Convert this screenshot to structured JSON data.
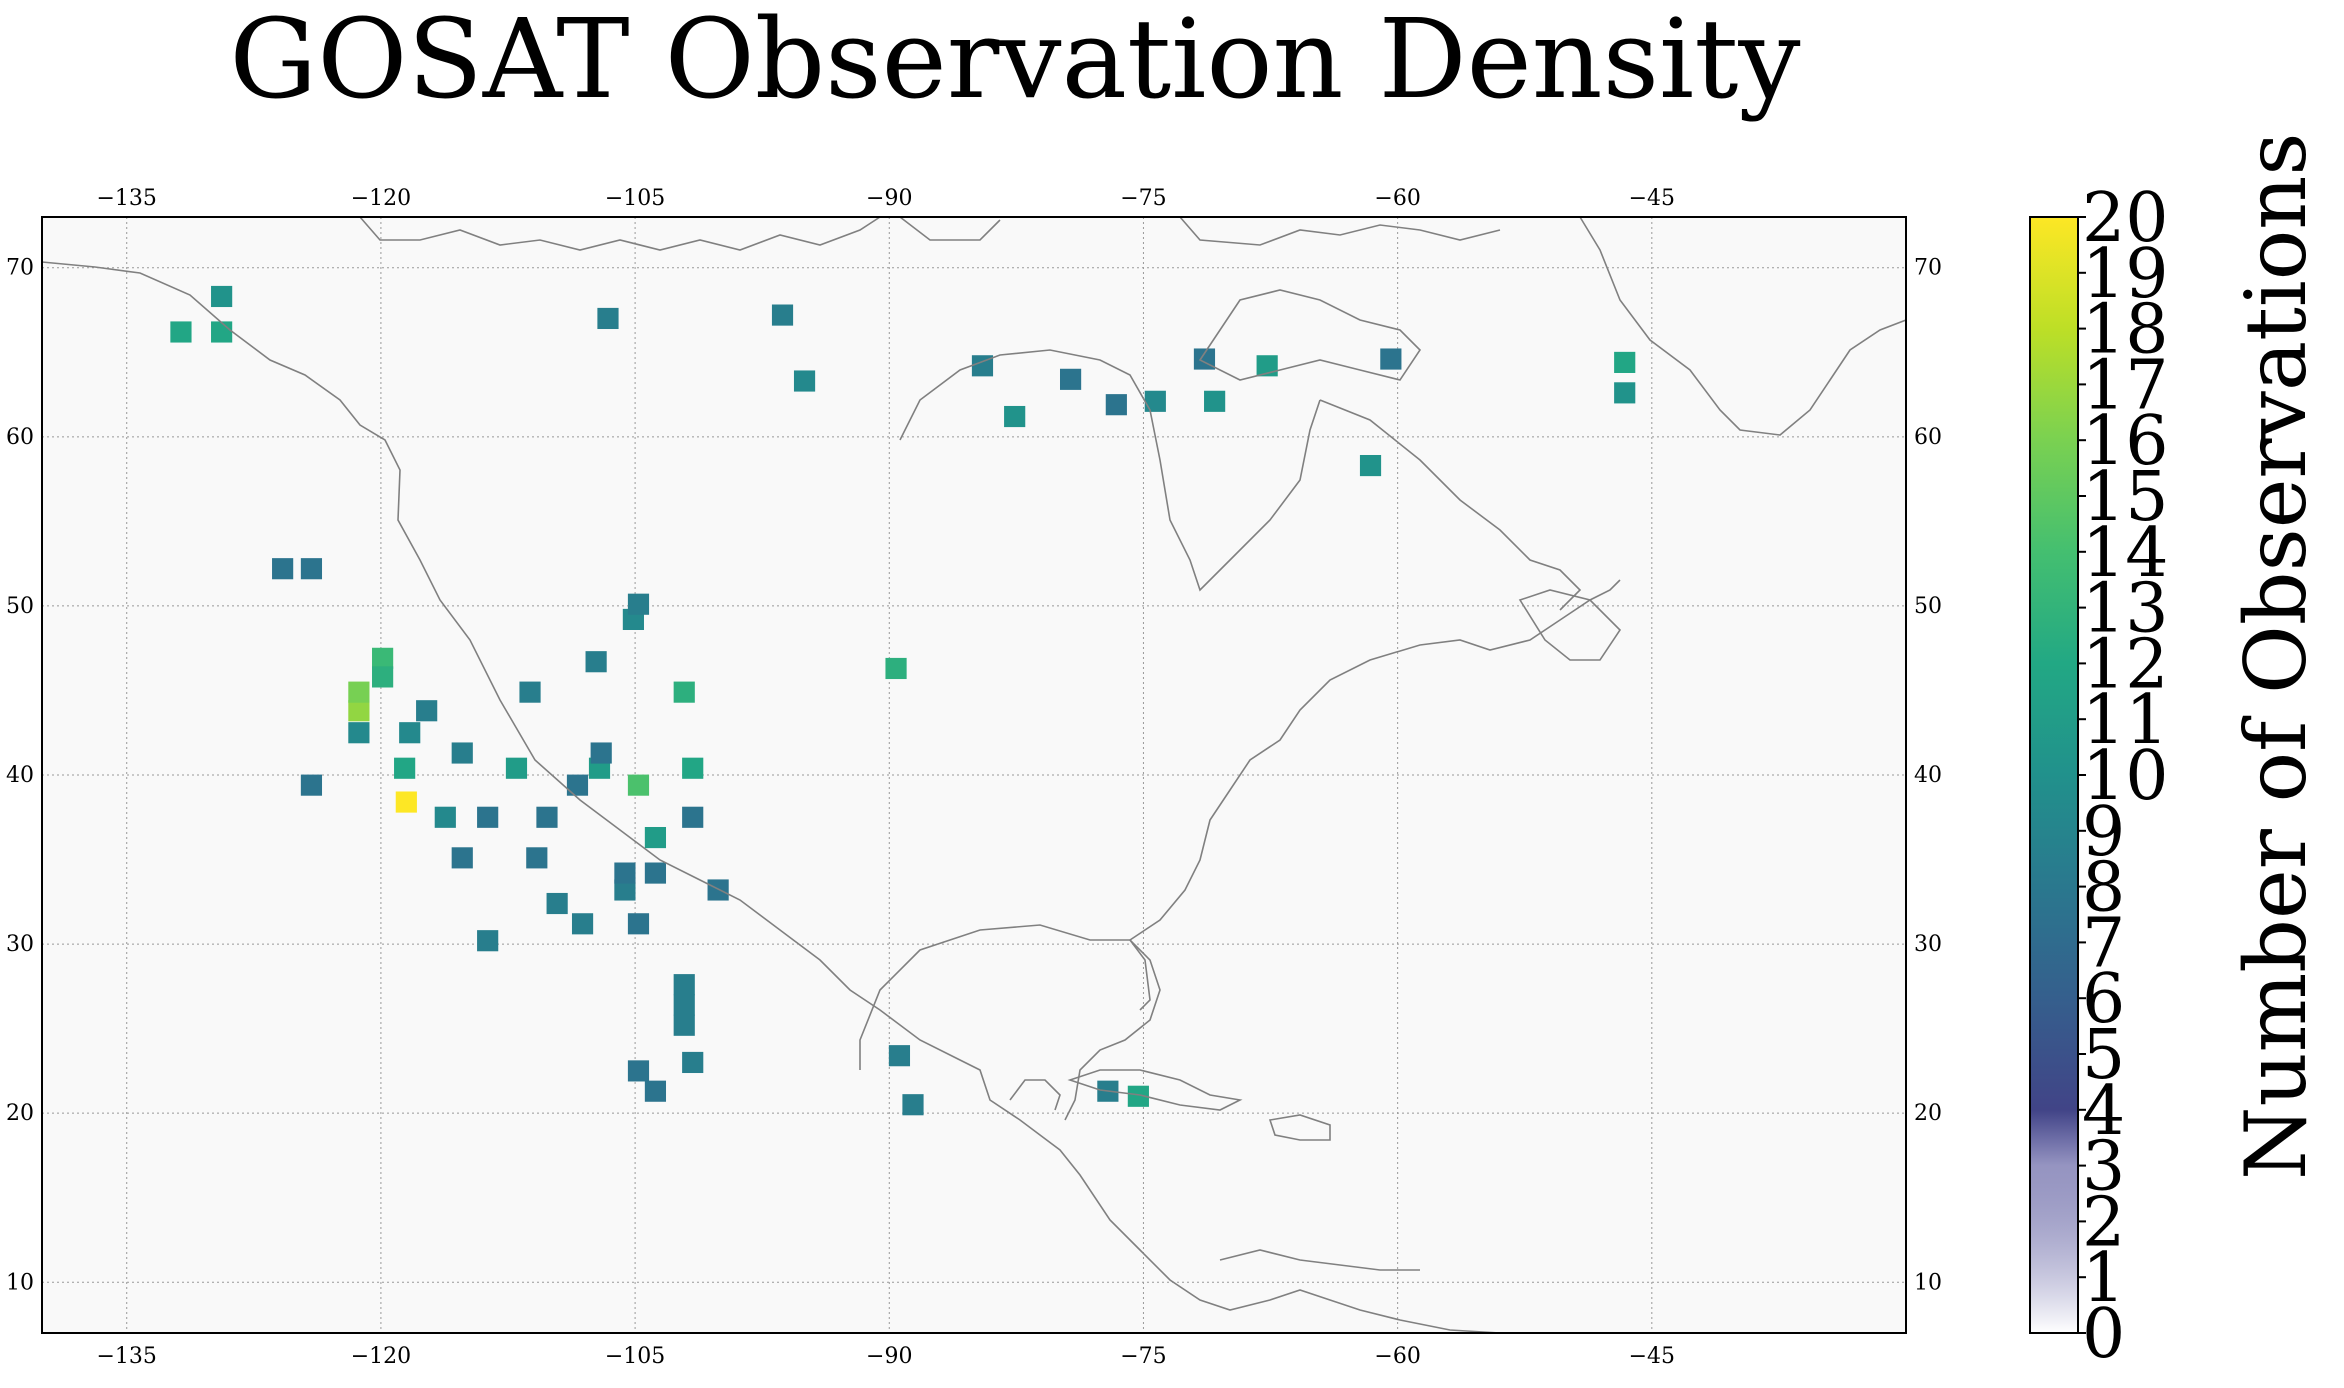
{
  "title": "GOSAT Observation Density",
  "colorbar": {
    "label": "Number of Observations",
    "vmin": 0,
    "vmax": 20,
    "ticks": [
      0,
      1,
      2,
      3,
      4,
      5,
      6,
      7,
      8,
      9,
      10,
      11,
      12,
      13,
      14,
      15,
      16,
      17,
      18,
      19,
      20
    ],
    "colormap": "viridis",
    "low_end_transparent": true
  },
  "chart_data": {
    "type": "heatmap",
    "projection": "PlateCarree",
    "title": "GOSAT Observation Density",
    "xlim": [
      -140,
      -30
    ],
    "ylim": [
      7,
      73
    ],
    "cell_size_deg": 1.25,
    "x_ticks": [
      -135,
      -120,
      -105,
      -90,
      -75,
      -60,
      -45
    ],
    "y_ticks": [
      10,
      20,
      30,
      40,
      50,
      60,
      70
    ],
    "grid": true,
    "background": "#f9f9f9",
    "coastline_color": "#808080",
    "cells": [
      [
        -121.3,
        43.8,
        16
      ],
      [
        -121.3,
        44.9,
        15
      ],
      [
        -118.5,
        38.4,
        20
      ],
      [
        -104.8,
        39.4,
        13
      ],
      [
        -119.9,
        46.9,
        12
      ],
      [
        -119.9,
        45.8,
        11
      ],
      [
        -102.1,
        44.9,
        11
      ],
      [
        -89.6,
        46.3,
        11
      ],
      [
        -131.8,
        66.2,
        10
      ],
      [
        -129.4,
        66.2,
        10
      ],
      [
        -101.6,
        40.4,
        10
      ],
      [
        -46.6,
        64.4,
        10
      ],
      [
        -75.3,
        21.0,
        10
      ],
      [
        -118.6,
        40.4,
        10
      ],
      [
        -107.1,
        40.4,
        9
      ],
      [
        -112.0,
        40.4,
        9
      ],
      [
        -103.8,
        36.3,
        9
      ],
      [
        -67.7,
        64.2,
        9
      ],
      [
        -46.6,
        62.6,
        8
      ],
      [
        -129.4,
        68.3,
        8
      ],
      [
        -82.6,
        61.2,
        8
      ],
      [
        -70.8,
        62.1,
        8
      ],
      [
        -61.6,
        58.3,
        8
      ],
      [
        -74.3,
        62.1,
        7
      ],
      [
        -105.1,
        49.2,
        7
      ],
      [
        -95.0,
        63.3,
        7
      ],
      [
        -121.3,
        42.5,
        7
      ],
      [
        -118.3,
        42.5,
        7
      ],
      [
        -116.2,
        37.5,
        7
      ],
      [
        -113.7,
        30.2,
        6
      ],
      [
        -102.1,
        25.2,
        6
      ],
      [
        -102.1,
        26.4,
        6
      ],
      [
        -89.4,
        23.4,
        6
      ],
      [
        -77.1,
        21.3,
        6
      ],
      [
        -101.6,
        23.0,
        6
      ],
      [
        -88.6,
        20.5,
        6
      ],
      [
        -102.1,
        27.6,
        6
      ],
      [
        -109.6,
        32.4,
        6
      ],
      [
        -108.1,
        31.2,
        6
      ],
      [
        -105.6,
        33.2,
        6
      ],
      [
        -115.2,
        41.3,
        6
      ],
      [
        -117.3,
        43.8,
        6
      ],
      [
        -111.2,
        44.9,
        6
      ],
      [
        -107.3,
        46.7,
        6
      ],
      [
        -104.8,
        50.1,
        6
      ],
      [
        -96.3,
        67.2,
        6
      ],
      [
        -106.6,
        67.0,
        6
      ],
      [
        -84.5,
        64.2,
        6
      ],
      [
        -79.3,
        63.4,
        5
      ],
      [
        -76.6,
        61.9,
        5
      ],
      [
        -71.4,
        64.6,
        5
      ],
      [
        -60.4,
        64.6,
        5
      ],
      [
        -103.8,
        21.3,
        5
      ],
      [
        -104.8,
        22.5,
        5
      ],
      [
        -105.6,
        34.2,
        5
      ],
      [
        -103.8,
        34.2,
        5
      ],
      [
        -104.8,
        31.2,
        5
      ],
      [
        -110.8,
        35.1,
        5
      ],
      [
        -115.2,
        35.1,
        5
      ],
      [
        -113.7,
        37.5,
        5
      ],
      [
        -110.2,
        37.5,
        5
      ],
      [
        -100.1,
        33.2,
        5
      ],
      [
        -124.1,
        39.4,
        5
      ],
      [
        -124.1,
        52.2,
        5
      ],
      [
        -125.8,
        52.2,
        5
      ],
      [
        -108.4,
        39.4,
        5
      ],
      [
        -107.0,
        41.3,
        5
      ],
      [
        -101.6,
        37.5,
        5
      ]
    ]
  }
}
